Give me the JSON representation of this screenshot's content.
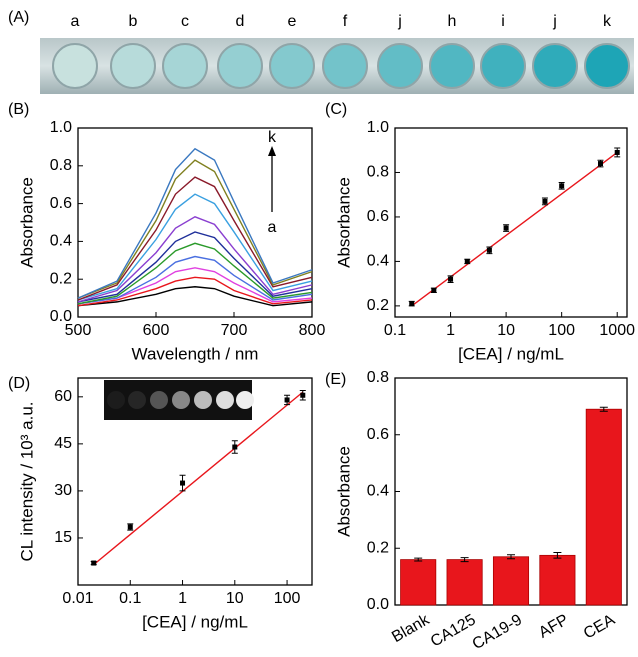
{
  "photo": {
    "panel": "(A)",
    "labels": [
      "a",
      "b",
      "c",
      "d",
      "e",
      "f",
      "j",
      "h",
      "i",
      "j",
      "k"
    ]
  },
  "chart_data": [
    {
      "type": "line",
      "panel": "(B)",
      "xlabel": "Wavelength / nm",
      "ylabel": "Absorbance",
      "annotations": [
        "k",
        "a"
      ],
      "x": [
        500,
        550,
        600,
        625,
        650,
        675,
        700,
        750,
        800
      ],
      "xlim": [
        500,
        800
      ],
      "xticks": [
        500,
        600,
        700,
        800
      ],
      "ylim": [
        0,
        1.0
      ],
      "yticks": [
        {
          "value": 0,
          "label": "0.0"
        },
        {
          "value": 0.2,
          "label": "0.2"
        },
        {
          "value": 0.4,
          "label": "0.4"
        },
        {
          "value": 0.6,
          "label": "0.6"
        },
        {
          "value": 0.8,
          "label": "0.8"
        },
        {
          "value": 1.0,
          "label": "1.0"
        }
      ],
      "series": [
        {
          "color": "#000000",
          "values": [
            0.06,
            0.08,
            0.12,
            0.15,
            0.16,
            0.15,
            0.11,
            0.06,
            0.08
          ]
        },
        {
          "color": "#e8161c",
          "values": [
            0.06,
            0.09,
            0.15,
            0.19,
            0.21,
            0.2,
            0.14,
            0.07,
            0.09
          ]
        },
        {
          "color": "#e040e0",
          "values": [
            0.07,
            0.1,
            0.18,
            0.24,
            0.26,
            0.24,
            0.18,
            0.08,
            0.1
          ]
        },
        {
          "color": "#4a6fe0",
          "values": [
            0.07,
            0.1,
            0.21,
            0.29,
            0.32,
            0.3,
            0.22,
            0.09,
            0.12
          ]
        },
        {
          "color": "#2a9a2a",
          "values": [
            0.07,
            0.11,
            0.26,
            0.35,
            0.39,
            0.36,
            0.27,
            0.1,
            0.13
          ]
        },
        {
          "color": "#1f2f9a",
          "values": [
            0.08,
            0.12,
            0.29,
            0.4,
            0.45,
            0.42,
            0.31,
            0.11,
            0.15
          ]
        },
        {
          "color": "#8a3fd0",
          "values": [
            0.08,
            0.14,
            0.34,
            0.47,
            0.53,
            0.49,
            0.36,
            0.12,
            0.17
          ]
        },
        {
          "color": "#3aa0e0",
          "values": [
            0.09,
            0.15,
            0.41,
            0.57,
            0.65,
            0.6,
            0.45,
            0.14,
            0.19
          ]
        },
        {
          "color": "#8a1a2a",
          "values": [
            0.09,
            0.17,
            0.46,
            0.65,
            0.74,
            0.69,
            0.51,
            0.16,
            0.21
          ]
        },
        {
          "color": "#808020",
          "values": [
            0.1,
            0.18,
            0.51,
            0.73,
            0.83,
            0.77,
            0.57,
            0.17,
            0.24
          ]
        },
        {
          "color": "#3a78c0",
          "values": [
            0.1,
            0.19,
            0.55,
            0.78,
            0.89,
            0.83,
            0.61,
            0.18,
            0.25
          ]
        }
      ]
    },
    {
      "type": "scatter",
      "panel": "(C)",
      "xlabel": "[CEA] / ng/mL",
      "ylabel": "Absorbance",
      "xlog": true,
      "xlim": [
        0.1,
        1500
      ],
      "xticks": [
        0.1,
        1,
        10,
        100,
        1000
      ],
      "ylim": [
        0.15,
        1.0
      ],
      "yticks": [
        0.2,
        0.4,
        0.6,
        0.8,
        {
          "value": 1.0,
          "label": "1.0"
        }
      ],
      "color": "#000000",
      "fit_color": "#e8161c",
      "x": [
        0.2,
        0.5,
        1,
        2,
        5,
        10,
        50,
        100,
        500,
        1000
      ],
      "y": [
        0.21,
        0.27,
        0.32,
        0.4,
        0.45,
        0.55,
        0.67,
        0.74,
        0.84,
        0.89
      ],
      "errors": [
        0.01,
        0.01,
        0.015,
        0.01,
        0.015,
        0.015,
        0.015,
        0.015,
        0.015,
        0.02
      ],
      "fit": {
        "x": [
          0.2,
          1000
        ],
        "y": [
          0.2,
          0.89
        ]
      }
    },
    {
      "type": "scatter",
      "panel": "(D)",
      "xlabel": "[CEA] / ng/mL",
      "ylabel": "CL intensity / 10³ a.u.",
      "xlog": true,
      "xlim": [
        0.01,
        300
      ],
      "xticks": [
        0.01,
        0.1,
        1,
        10,
        100
      ],
      "ylim": [
        0,
        66
      ],
      "yticks": [
        15,
        30,
        45,
        60
      ],
      "color": "#000000",
      "fit_color": "#e8161c",
      "x": [
        0.02,
        0.1,
        1,
        10,
        100,
        200
      ],
      "y": [
        7,
        18.5,
        32.5,
        44,
        59,
        60.5
      ],
      "errors": [
        0.5,
        1,
        2.5,
        2,
        1.5,
        1.5
      ],
      "fit": {
        "x": [
          0.02,
          200
        ],
        "y": [
          6.5,
          61.5
        ]
      }
    },
    {
      "type": "bar",
      "panel": "(E)",
      "ylabel": "Absorbance",
      "categories": [
        "Blank",
        "CA125",
        "CA19-9",
        "AFP",
        "CEA"
      ],
      "values": [
        0.16,
        0.16,
        0.17,
        0.175,
        0.69
      ],
      "errors": [
        0.005,
        0.007,
        0.007,
        0.01,
        0.007
      ],
      "color": "#e8161c",
      "ylim": [
        0,
        0.8
      ],
      "yticks": [
        {
          "value": 0,
          "label": "0.0"
        },
        0.2,
        0.4,
        0.6,
        0.8
      ]
    }
  ]
}
